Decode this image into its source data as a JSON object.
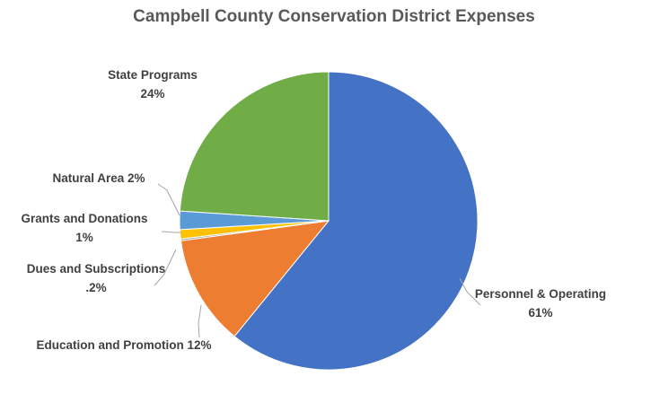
{
  "chart_data": {
    "type": "pie",
    "title": "Campbell County Conservation District Expenses",
    "slices": [
      {
        "name": "Personnel & Operating",
        "value": 61,
        "value_label": "61%",
        "color": "#4472C4"
      },
      {
        "name": "Education and Promotion",
        "value": 12,
        "value_label": "12%",
        "color": "#ED7D31"
      },
      {
        "name": "Dues and Subscriptions",
        "value": 0.2,
        "value_label": ".2%",
        "color": "#A5A5A5"
      },
      {
        "name": "Grants and Donations",
        "value": 1,
        "value_label": "1%",
        "color": "#FFC000"
      },
      {
        "name": "Natural Area",
        "value": 2,
        "value_label": "2%",
        "color": "#5B9BD5"
      },
      {
        "name": "State Programs",
        "value": 24,
        "value_label": "24%",
        "color": "#70AD47"
      }
    ]
  }
}
